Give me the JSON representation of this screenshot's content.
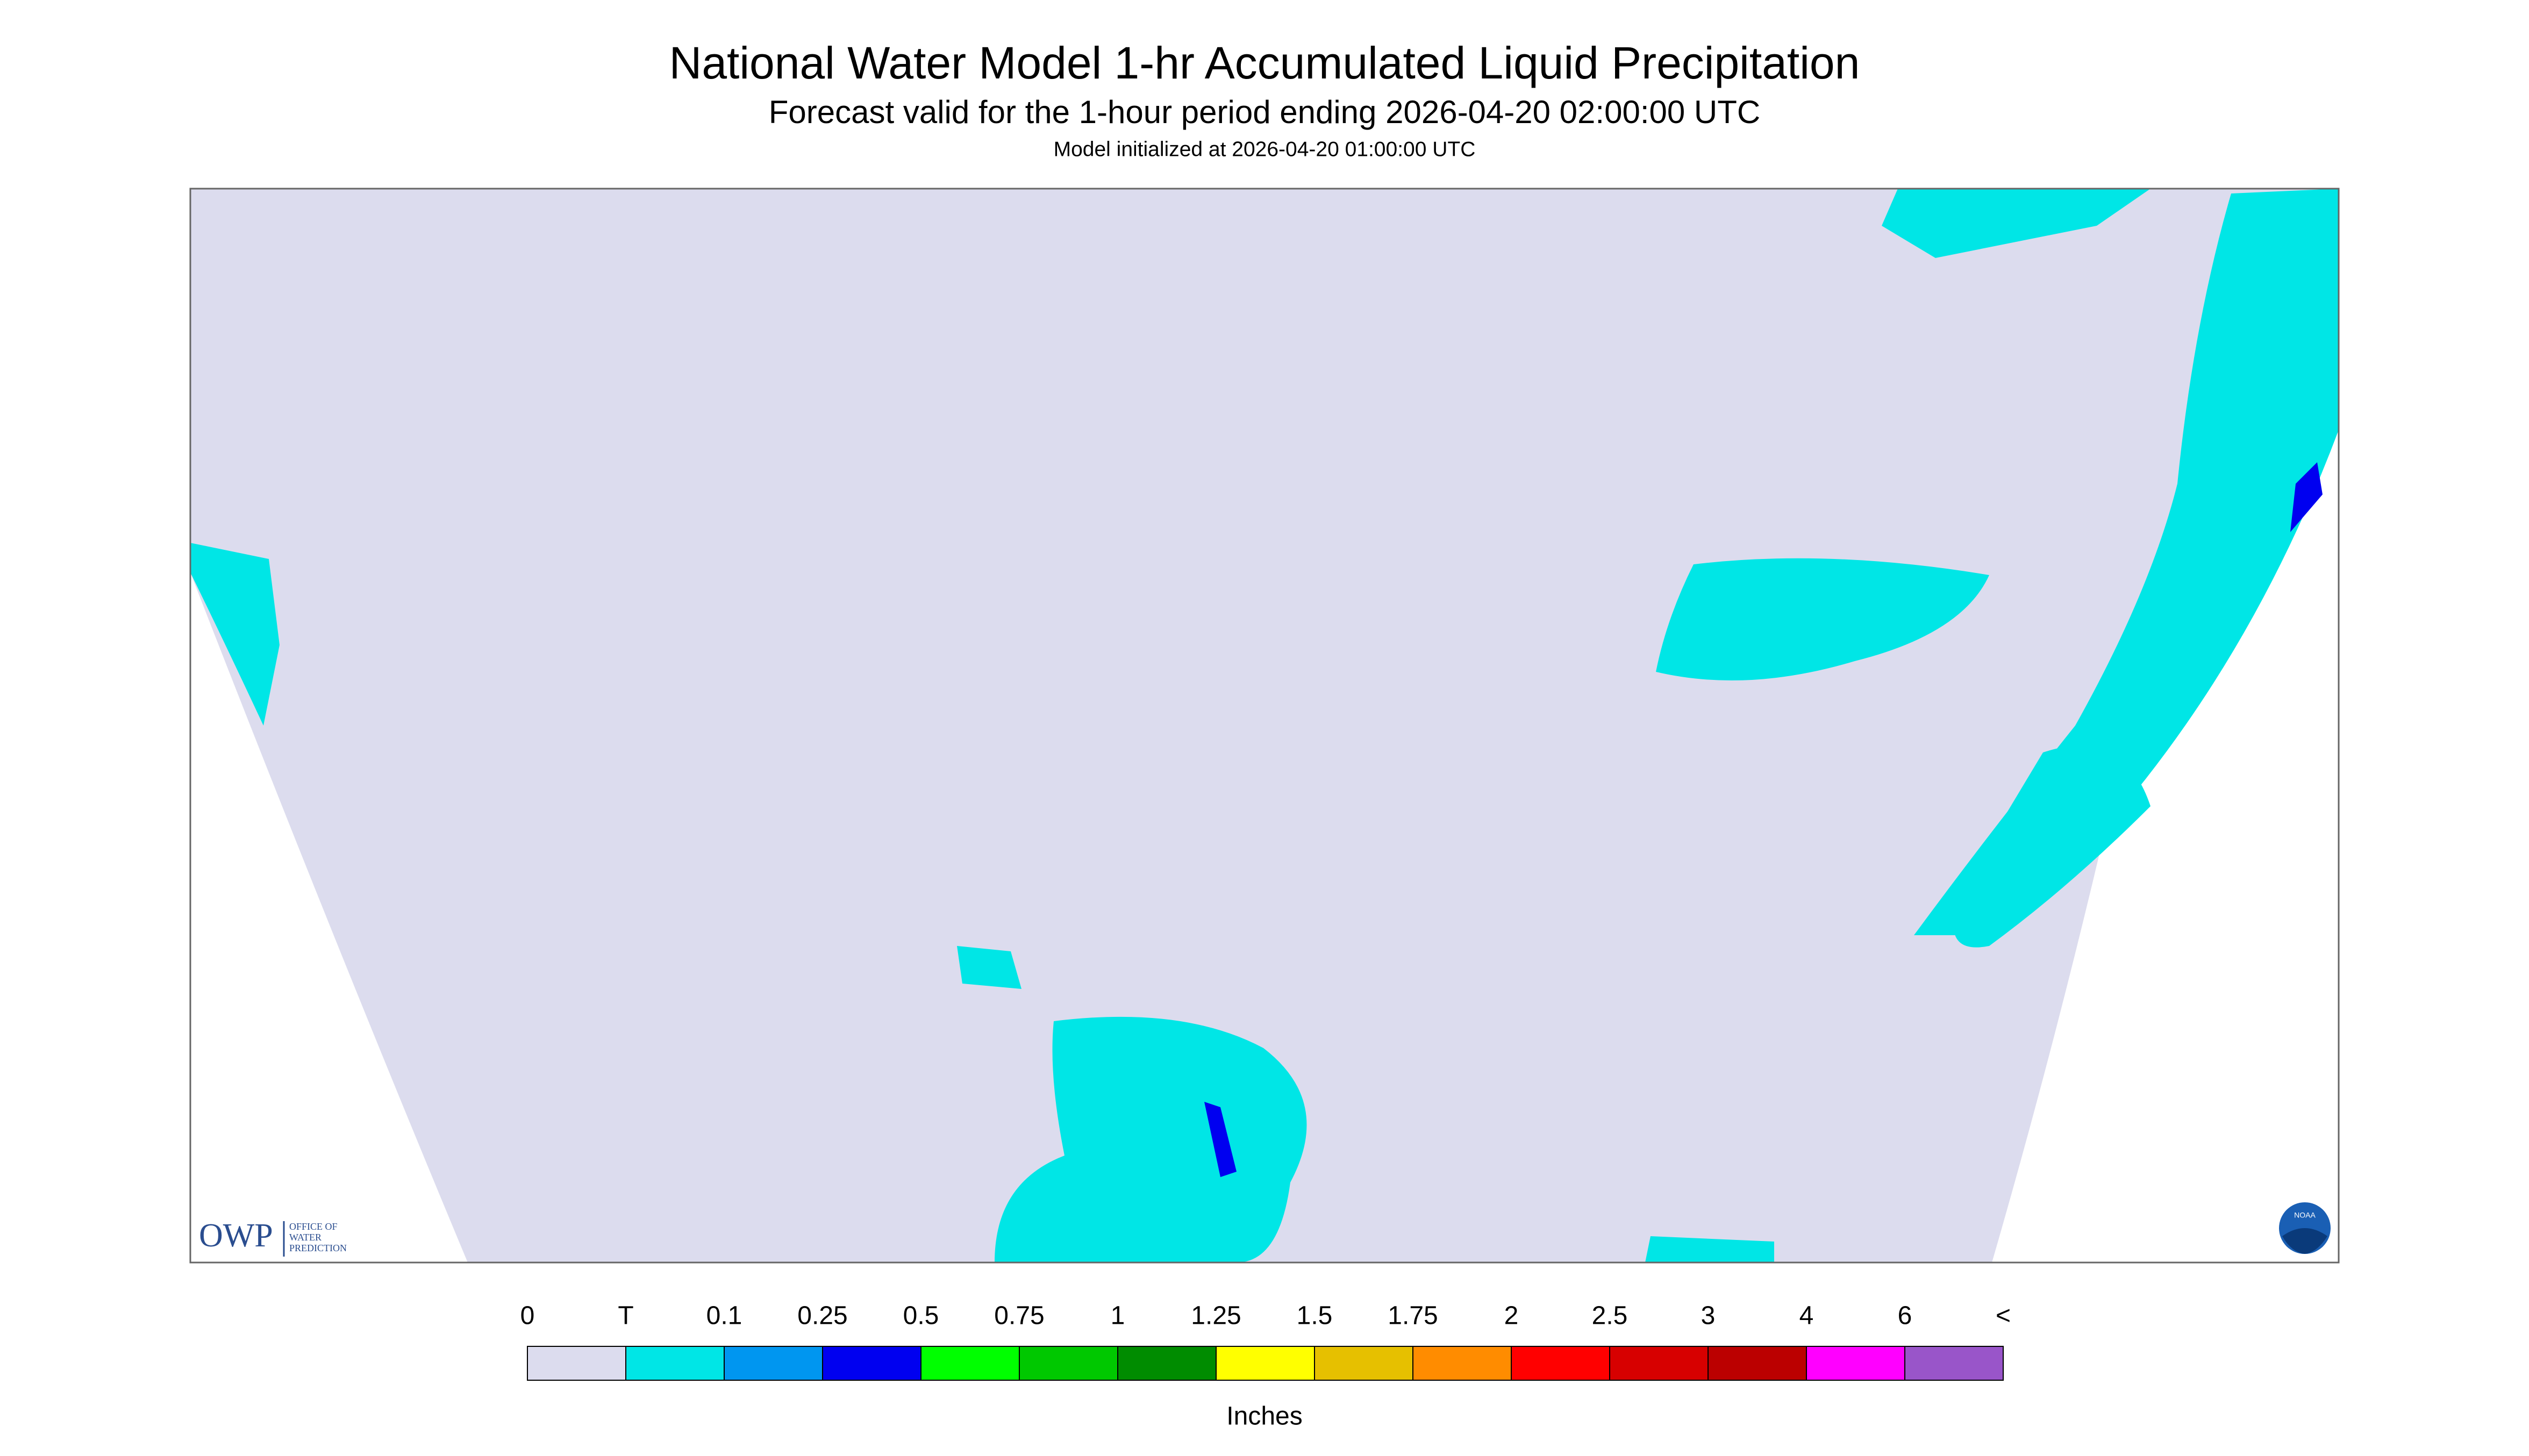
{
  "header": {
    "title": "National Water Model 1-hr Accumulated Liquid Precipitation",
    "subtitle": "Forecast valid for the 1-hour period ending 2026-04-20 02:00:00 UTC",
    "initialized": "Model initialized at 2026-04-20 01:00:00 UTC"
  },
  "legend": {
    "labels": [
      "0",
      "T",
      "0.1",
      "0.25",
      "0.5",
      "0.75",
      "1",
      "1.25",
      "1.5",
      "1.75",
      "2",
      "2.5",
      "3",
      "4",
      "6",
      "<"
    ],
    "colors": [
      "#dcdcee",
      "#00e6e6",
      "#0096f0",
      "#0000f0",
      "#00ff00",
      "#00c800",
      "#008c00",
      "#ffff00",
      "#e6c000",
      "#ff8c00",
      "#ff0000",
      "#d70000",
      "#bb0000",
      "#ff00ff",
      "#9955c9"
    ],
    "unit": "Inches"
  },
  "logos": {
    "owp": "OWP",
    "owp_lines": [
      "OFFICE OF",
      "WATER",
      "PREDICTION"
    ],
    "noaa": "NOAA"
  }
}
